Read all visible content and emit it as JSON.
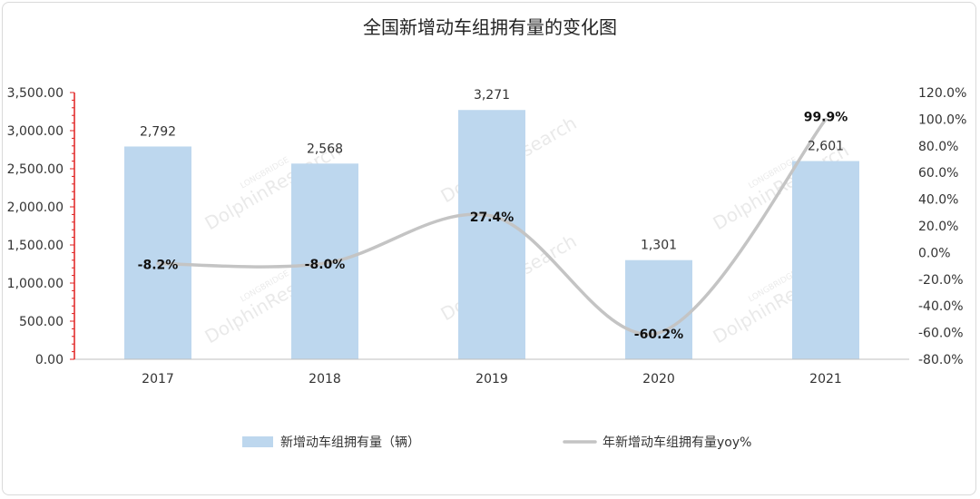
{
  "title": "全国新增动车组拥有量的变化图",
  "chart_data": {
    "type": "bar",
    "categories": [
      "2017",
      "2018",
      "2019",
      "2020",
      "2021"
    ],
    "series": [
      {
        "name": "新增动车组拥有量（辆）",
        "type": "bar",
        "axis": "left",
        "values": [
          2792,
          2568,
          3271,
          1301,
          2601
        ],
        "labels": [
          "2,792",
          "2,568",
          "3,271",
          "1,301",
          "2,601"
        ]
      },
      {
        "name": "年新增动车组拥有量yoy%",
        "type": "line",
        "axis": "right",
        "values": [
          -8.2,
          -8.0,
          27.4,
          -60.2,
          99.9
        ],
        "labels": [
          "-8.2%",
          "-8.0%",
          "27.4%",
          "-60.2%",
          "99.9%"
        ]
      }
    ],
    "left_axis": {
      "ylim": [
        0,
        3500
      ],
      "ticks": [
        "0.00",
        "500.00",
        "1,000.00",
        "1,500.00",
        "2,000.00",
        "2,500.00",
        "3,000.00",
        "3,500.00"
      ]
    },
    "right_axis": {
      "ylim": [
        -80,
        120
      ],
      "ticks": [
        "-80.0%",
        "-60.0%",
        "-40.0%",
        "-20.0%",
        "0.0%",
        "20.0%",
        "40.0%",
        "60.0%",
        "80.0%",
        "100.0%",
        "120.0%"
      ]
    },
    "legend_position": "bottom",
    "grid": false,
    "colors": {
      "bar": "#bdd7ee",
      "line": "#c4c4c4",
      "left_axis": "#e02020"
    },
    "watermark": "LONGBRIDGE DolphinResearch"
  }
}
